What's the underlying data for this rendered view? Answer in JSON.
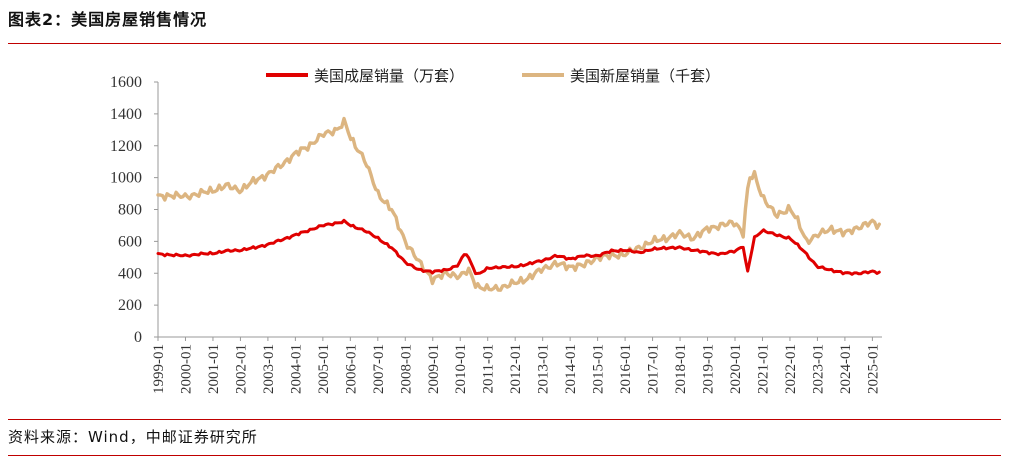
{
  "header": {
    "title": "图表2：美国房屋销售情况"
  },
  "footer": {
    "source": "资料来源：Wind，中邮证券研究所"
  },
  "chart_data": {
    "type": "line",
    "title": "图表2：美国房屋销售情况",
    "xlabel": "",
    "ylabel": "",
    "ylim": [
      0,
      1600
    ],
    "yticks": [
      "0",
      "200",
      "400",
      "600",
      "800",
      "1000",
      "1200",
      "1400",
      "1600"
    ],
    "xticks": [
      "1999-01",
      "2000-01",
      "2001-01",
      "2002-01",
      "2003-01",
      "2004-01",
      "2005-01",
      "2006-01",
      "2007-01",
      "2008-01",
      "2009-01",
      "2010-01",
      "2011-01",
      "2012-01",
      "2013-01",
      "2014-01",
      "2015-01",
      "2016-01",
      "2017-01",
      "2018-01",
      "2019-01",
      "2020-01",
      "2021-01",
      "2022-01",
      "2023-01",
      "2024-01",
      "2025-01"
    ],
    "legend_position": "top",
    "series": [
      {
        "name": "美国成屋销量（万套）",
        "color": "#e00000",
        "x": [
          1999.0,
          1999.5,
          2000.0,
          2000.5,
          2001.0,
          2001.5,
          2002.0,
          2002.5,
          2003.0,
          2003.5,
          2004.0,
          2004.5,
          2005.0,
          2005.5,
          2005.8,
          2006.0,
          2006.5,
          2007.0,
          2007.5,
          2008.0,
          2008.5,
          2009.0,
          2009.5,
          2009.9,
          2010.2,
          2010.6,
          2011.0,
          2011.5,
          2012.0,
          2012.5,
          2013.0,
          2013.5,
          2014.0,
          2014.5,
          2015.0,
          2015.5,
          2016.0,
          2016.5,
          2017.0,
          2017.5,
          2018.0,
          2018.5,
          2019.0,
          2019.5,
          2020.0,
          2020.3,
          2020.45,
          2020.7,
          2021.0,
          2021.5,
          2022.0,
          2022.5,
          2023.0,
          2023.5,
          2024.0,
          2024.5,
          2025.0,
          2025.25
        ],
        "values": [
          520,
          515,
          510,
          520,
          525,
          540,
          545,
          560,
          580,
          610,
          640,
          670,
          700,
          715,
          725,
          700,
          670,
          620,
          560,
          470,
          420,
          410,
          420,
          450,
          530,
          390,
          430,
          440,
          440,
          460,
          480,
          510,
          490,
          510,
          510,
          540,
          545,
          530,
          550,
          560,
          560,
          545,
          530,
          520,
          540,
          570,
          400,
          620,
          670,
          640,
          620,
          540,
          440,
          420,
          400,
          400,
          410,
          405
        ]
      },
      {
        "name": "美国新屋销量（千套）",
        "color": "#dcb581",
        "x": [
          1999.0,
          1999.5,
          2000.0,
          2000.5,
          2001.0,
          2001.5,
          2002.0,
          2002.5,
          2003.0,
          2003.5,
          2004.0,
          2004.5,
          2005.0,
          2005.5,
          2005.8,
          2006.0,
          2006.5,
          2007.0,
          2007.5,
          2008.0,
          2008.5,
          2009.0,
          2009.5,
          2010.0,
          2010.3,
          2010.6,
          2011.0,
          2011.5,
          2012.0,
          2012.5,
          2013.0,
          2013.5,
          2014.0,
          2014.5,
          2015.0,
          2015.5,
          2016.0,
          2016.5,
          2017.0,
          2017.5,
          2018.0,
          2018.5,
          2019.0,
          2019.5,
          2020.0,
          2020.3,
          2020.5,
          2020.7,
          2021.0,
          2021.5,
          2022.0,
          2022.3,
          2022.6,
          2023.0,
          2023.5,
          2024.0,
          2024.5,
          2025.0,
          2025.25
        ],
        "values": [
          880,
          890,
          880,
          900,
          920,
          950,
          920,
          980,
          1020,
          1080,
          1150,
          1200,
          1270,
          1300,
          1350,
          1250,
          1120,
          900,
          800,
          600,
          470,
          360,
          400,
          380,
          420,
          320,
          300,
          310,
          340,
          370,
          430,
          460,
          440,
          450,
          500,
          510,
          520,
          560,
          600,
          620,
          650,
          620,
          680,
          700,
          720,
          650,
          990,
          1020,
          880,
          760,
          810,
          720,
          600,
          640,
          680,
          650,
          690,
          720,
          700
        ]
      }
    ]
  }
}
